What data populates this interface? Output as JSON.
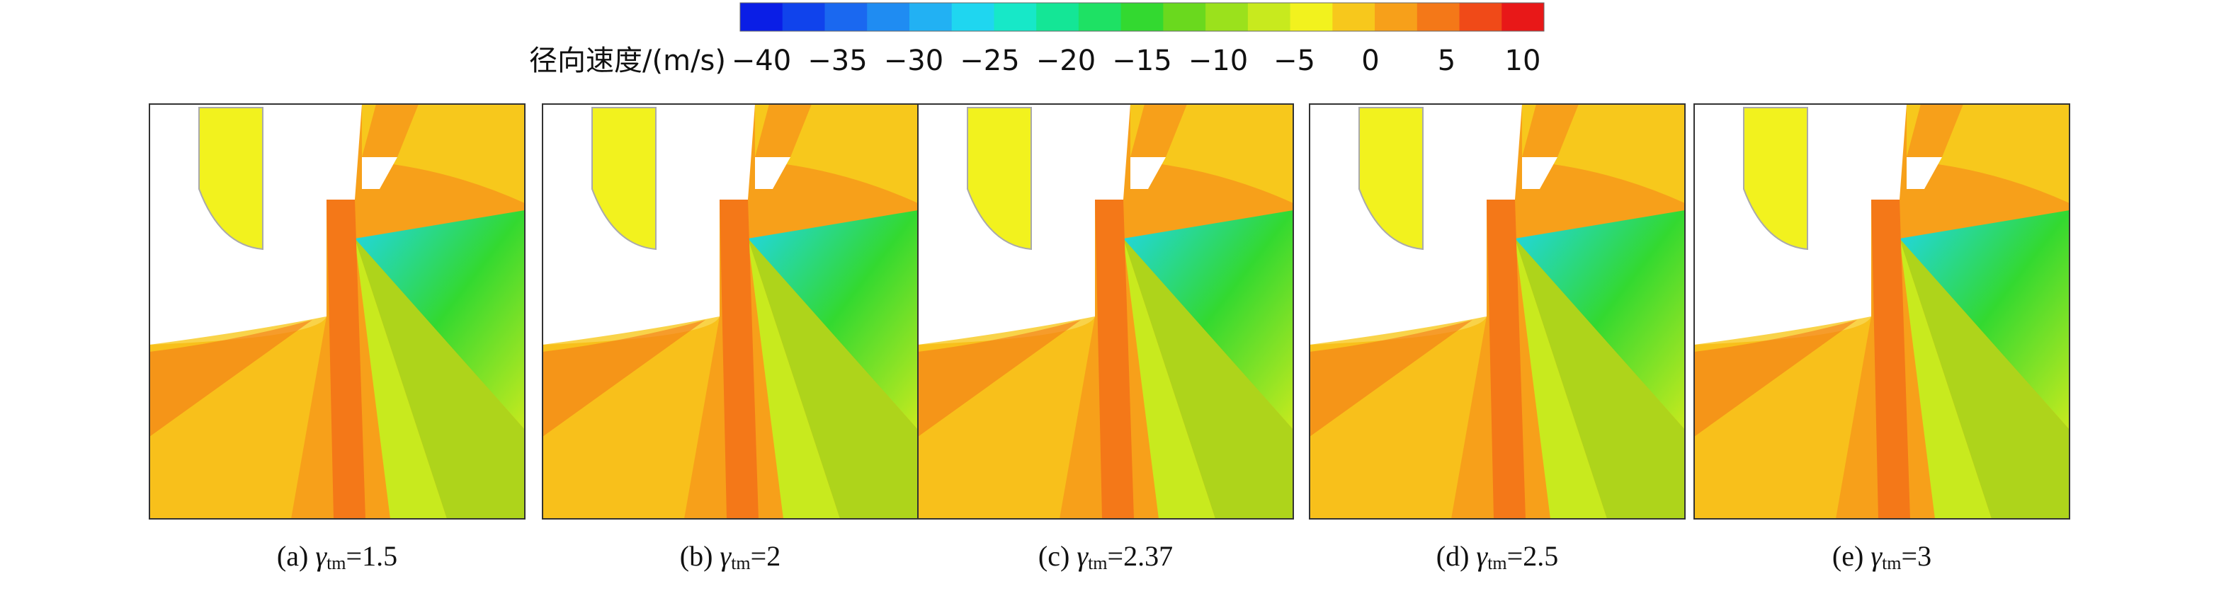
{
  "colorbar": {
    "label": "径向速度/(m/s)",
    "ticks": [
      {
        "value": -40,
        "label": "−40"
      },
      {
        "value": -35,
        "label": "−35"
      },
      {
        "value": -30,
        "label": "−30"
      },
      {
        "value": -25,
        "label": "−25"
      },
      {
        "value": -20,
        "label": "−20"
      },
      {
        "value": -15,
        "label": "−15"
      },
      {
        "value": -10,
        "label": "−10"
      },
      {
        "value": -5,
        "label": "−5"
      },
      0,
      5,
      10
    ],
    "colors": [
      "#0a1ee6",
      "#1043ec",
      "#1a68f0",
      "#1f8cf2",
      "#22b1f3",
      "#1fd6f0",
      "#17e8c8",
      "#14e696",
      "#1ee164",
      "#33d930",
      "#6ad91e",
      "#9be11c",
      "#c8ea1e",
      "#f2f21e",
      "#f7c81c",
      "#f7a01a",
      "#f47818",
      "#f04a18",
      "#e81818"
    ]
  },
  "panels": [
    {
      "prefix": "(a)",
      "symbol": "γ",
      "sub": "tm",
      "suffix": "=1.5"
    },
    {
      "prefix": "(b)",
      "symbol": "γ",
      "sub": "tm",
      "suffix": "=2"
    },
    {
      "prefix": "(c)",
      "symbol": "γ",
      "sub": "tm",
      "suffix": "=2.37"
    },
    {
      "prefix": "(d)",
      "symbol": "γ",
      "sub": "tm",
      "suffix": "=2.5"
    },
    {
      "prefix": "(e)",
      "symbol": "γ",
      "sub": "tm",
      "suffix": "=3"
    }
  ]
}
